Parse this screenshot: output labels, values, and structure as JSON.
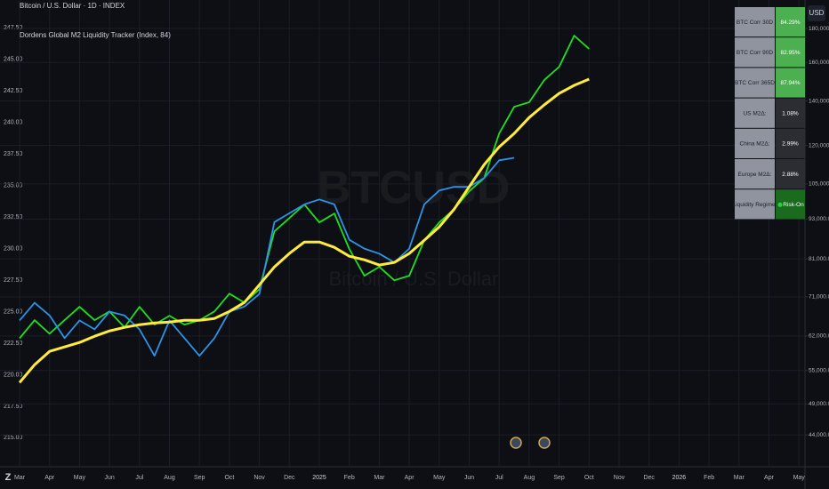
{
  "chart_data": {
    "type": "line",
    "title": "Bitcoin / U.S. Dollar · 1D · INDEX",
    "subtitle": "Dordens Global M2 Liquidity Tracker (Index, 84)",
    "watermark": [
      "BTCUSD",
      "Bitcoin / U.S. Dollar"
    ],
    "currency_button": "USD",
    "categories": [
      "Mar",
      null,
      "Apr",
      null,
      "May",
      null,
      "Jun",
      null,
      "Jul",
      null,
      "Aug",
      null,
      "Sep",
      null,
      "Oct",
      null,
      "Nov",
      null,
      "Dec",
      null,
      "2025",
      null,
      "Feb",
      null,
      "Mar",
      null,
      "Apr",
      null,
      "May",
      null,
      "Jun",
      null,
      "Jul",
      null,
      "Aug",
      null,
      "Sep",
      null,
      "Oct",
      null,
      "Nov",
      null,
      "Dec",
      null,
      "2026",
      null,
      "Feb",
      null,
      "Mar",
      null,
      "Apr",
      null,
      "May"
    ],
    "series": [
      {
        "color": "#1fe01c",
        "axis": "y2",
        "values": [
          61500,
          65500,
          62500,
          65500,
          68600,
          65500,
          67500,
          63900,
          68600,
          64500,
          66500,
          64500,
          65500,
          67500,
          71800,
          69600,
          72900,
          89100,
          93300,
          97800,
          91900,
          94800,
          83800,
          76400,
          78800,
          75200,
          76400,
          86400,
          91900,
          96300,
          102400,
          107200,
          125100,
          137200,
          139400,
          150500,
          157600,
          175600,
          167700,
          null,
          null,
          null,
          null,
          null,
          null,
          null,
          null,
          null,
          null,
          null,
          null,
          null,
          null
        ]
      },
      {
        "color": "#2e93e6",
        "values": [
          224.3,
          225.7,
          224.7,
          222.9,
          224.3,
          223.6,
          225.0,
          224.7,
          223.6,
          221.5,
          224.3,
          222.9,
          221.5,
          222.9,
          225.0,
          225.4,
          226.4,
          232.1,
          232.8,
          233.5,
          233.9,
          233.5,
          230.7,
          230.0,
          229.6,
          228.9,
          230.0,
          233.5,
          234.6,
          234.9,
          234.9,
          235.6,
          237.0,
          237.2,
          null,
          null,
          null,
          null,
          null,
          null,
          null,
          null,
          null,
          null,
          null,
          null,
          null,
          null,
          null,
          null,
          null,
          null,
          null
        ]
      },
      {
        "color": "#ffeb3b",
        "axis": "y2",
        "values": [
          52760,
          56120,
          58780,
          59700,
          60610,
          61940,
          63100,
          63880,
          64470,
          64850,
          65060,
          65470,
          65470,
          65880,
          67510,
          69640,
          74050,
          78770,
          82510,
          85880,
          85880,
          84290,
          81740,
          80740,
          79280,
          80000,
          82510,
          86400,
          90500,
          96270,
          103970,
          112300,
          119400,
          125100,
          132200,
          138100,
          143700,
          147800,
          151000,
          null,
          null,
          null,
          null,
          null,
          null,
          null,
          null,
          null,
          null,
          null,
          null,
          null,
          null
        ]
      }
    ],
    "ylim": [
      212.7,
      248.3
    ],
    "yticks": [
      {
        "value": 215,
        "label": "215.00"
      },
      {
        "value": 217.5,
        "label": "217.50"
      },
      {
        "value": 220,
        "label": "220.00"
      },
      {
        "value": 222.5,
        "label": "222.50"
      },
      {
        "value": 225,
        "label": "225.00"
      },
      {
        "value": 227.5,
        "label": "227.50"
      },
      {
        "value": 230,
        "label": "230.00"
      },
      {
        "value": 232.5,
        "label": "232.50"
      },
      {
        "value": 235,
        "label": "235.00"
      },
      {
        "value": 237.5,
        "label": "237.50"
      },
      {
        "value": 240,
        "label": "240.00"
      },
      {
        "value": 242.5,
        "label": "242.50"
      },
      {
        "value": 245,
        "label": "245.00"
      },
      {
        "value": 247.5,
        "label": "247.50"
      }
    ],
    "y2lim": [
      39400,
      186800
    ],
    "y2scale": "log",
    "y2ticks": [
      {
        "value": 44000,
        "label": "44,000.00"
      },
      {
        "value": 49000,
        "label": "49,000.00"
      },
      {
        "value": 55000,
        "label": "55,000.00"
      },
      {
        "value": 62000,
        "label": "62,000.00"
      },
      {
        "value": 71000,
        "label": "71,000.00"
      },
      {
        "value": 81000,
        "label": "81,000.00"
      },
      {
        "value": 93000,
        "label": "93,000.00"
      },
      {
        "value": 105000,
        "label": "105,000.00"
      },
      {
        "value": 120000,
        "label": "120,000.00"
      },
      {
        "value": 140000,
        "label": "140,000.00"
      },
      {
        "value": 160000,
        "label": "160,000.00"
      },
      {
        "value": 180000,
        "label": "180,000.00"
      }
    ],
    "grid": true
  },
  "table": {
    "rows": [
      [
        "BTC Corr 30D",
        "84.29%"
      ],
      [
        "BTC Corr 90D",
        "82.95%"
      ],
      [
        "BTC Corr 365D",
        "87.94%"
      ],
      [
        "US M2Δ:",
        "1.08%"
      ],
      [
        "China M2Δ:",
        "2.99%"
      ],
      [
        "Europe M2Δ:",
        "2.88%"
      ],
      [
        "Liquidity Regime:",
        "Risk-On"
      ]
    ]
  }
}
